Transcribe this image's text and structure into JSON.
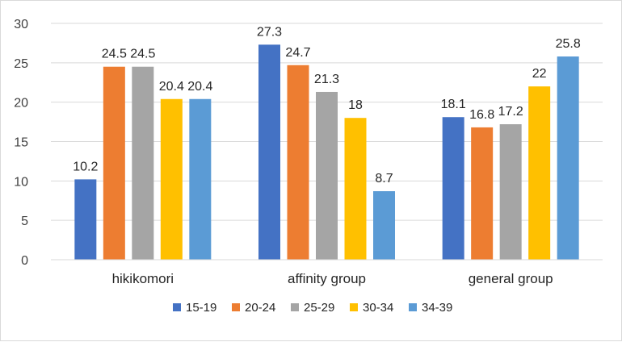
{
  "chart_data": {
    "type": "bar",
    "categories": [
      "hikikomori",
      "affinity group",
      "general group"
    ],
    "series": [
      {
        "name": "15-19",
        "values": [
          10.2,
          27.3,
          18.1
        ],
        "color": "#4472C4"
      },
      {
        "name": "20-24",
        "values": [
          24.5,
          24.7,
          16.8
        ],
        "color": "#ED7D31"
      },
      {
        "name": "25-29",
        "values": [
          24.5,
          21.3,
          17.2
        ],
        "color": "#A5A5A5"
      },
      {
        "name": "30-34",
        "values": [
          20.4,
          18,
          22
        ],
        "color": "#FFC000"
      },
      {
        "name": "34-39",
        "values": [
          20.4,
          8.7,
          25.8
        ],
        "color": "#5B9BD5"
      }
    ],
    "ylim": [
      0,
      30
    ],
    "yticks": [
      0,
      5,
      10,
      15,
      20,
      25,
      30
    ],
    "grid": true,
    "legend": "bottom"
  }
}
